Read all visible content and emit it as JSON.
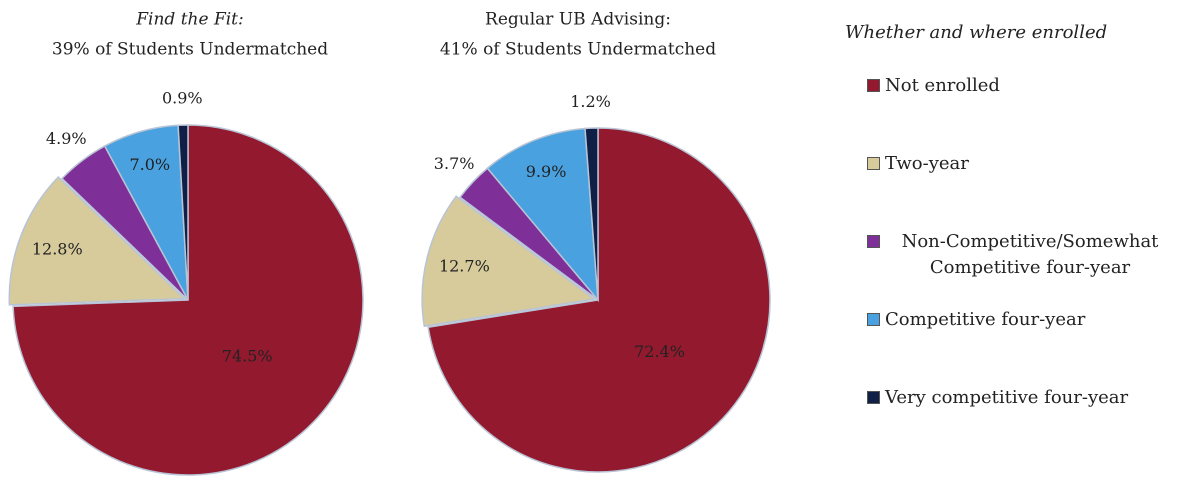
{
  "chart_data": [
    {
      "type": "pie",
      "title": [
        "Find the Fit:",
        "39% of Students Undermatched"
      ],
      "values": [
        74.5,
        12.8,
        4.9,
        7.0,
        0.9
      ],
      "value_labels": [
        "74.5%",
        "12.8%",
        "4.9%",
        "7.0%",
        "0.9%"
      ]
    },
    {
      "type": "pie",
      "title": [
        "Regular UB Advising:",
        "41% of Students Undermatched"
      ],
      "values": [
        72.4,
        12.7,
        3.7,
        9.9,
        1.2
      ],
      "value_labels": [
        "72.4%",
        "12.7%",
        "3.7%",
        "9.9%",
        "1.2%"
      ]
    }
  ],
  "legend": {
    "title": "Whether and where enrolled",
    "labels": [
      "Not enrolled",
      "Two-year",
      "Non-Competitive/Somewhat Competitive four-year",
      "Competitive four-year",
      "Very competitive four-year"
    ],
    "colors": [
      "#931a2e",
      "#d7cb9c",
      "#7f2f98",
      "#4aa1df",
      "#0f1f45"
    ]
  }
}
